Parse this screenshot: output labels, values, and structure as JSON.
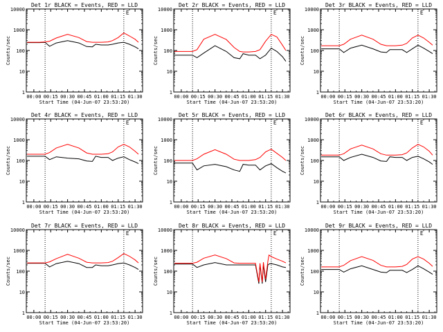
{
  "common": {
    "tick_labels": [
      "00:00",
      "00:15",
      "00:30",
      "00:45",
      "01:00",
      "01:15",
      "01:30"
    ],
    "xlabel": "Start Time (04-Jun-07 23:53:20)",
    "ylabel": "Counts/sec",
    "y_tick_labels": [
      "1",
      "10",
      "100",
      "1000",
      "10000"
    ],
    "ylim": [
      1,
      10000
    ],
    "y_scale": "log",
    "xlim_minutes": [
      -6.7,
      96.7
    ],
    "colors": {
      "events": "#000000",
      "lld": "#ff0000",
      "axes": "#000000",
      "markers": "#000000"
    },
    "marker_label": "E"
  },
  "chart_data": [
    {
      "type": "line",
      "title": "Det 1r BLACK = Events, RED = LLD",
      "marker_lines_min": [
        10.0,
        80.0
      ],
      "series": [
        {
          "name": "BLACK = Events",
          "x": [
            -6,
            0,
            5,
            10,
            14,
            20,
            30,
            40,
            47,
            52,
            55,
            60,
            66,
            70,
            75,
            80,
            85,
            90,
            93
          ],
          "y": [
            240,
            240,
            240,
            245,
            160,
            230,
            300,
            230,
            155,
            150,
            200,
            185,
            185,
            200,
            230,
            250,
            200,
            150,
            120
          ]
        },
        {
          "name": "RED = LLD",
          "x": [
            -6,
            0,
            5,
            10,
            14,
            20,
            30,
            40,
            47,
            52,
            55,
            60,
            66,
            70,
            75,
            80,
            85,
            90,
            93
          ],
          "y": [
            250,
            250,
            250,
            260,
            280,
            400,
            600,
            420,
            270,
            250,
            250,
            250,
            260,
            300,
            420,
            700,
            500,
            350,
            250
          ]
        }
      ]
    },
    {
      "type": "line",
      "title": "Det 2r BLACK = Events, RED = LLD",
      "marker_lines_min": [
        10.0,
        80.0
      ],
      "series": [
        {
          "name": "BLACK = Events",
          "x": [
            -6,
            0,
            10,
            14,
            20,
            30,
            40,
            47,
            52,
            55,
            60,
            66,
            70,
            75,
            80,
            85,
            90,
            93
          ],
          "y": [
            60,
            60,
            60,
            45,
            75,
            170,
            90,
            45,
            40,
            70,
            60,
            60,
            40,
            60,
            130,
            90,
            50,
            30
          ]
        },
        {
          "name": "RED = LLD",
          "x": [
            -6,
            0,
            10,
            14,
            20,
            30,
            40,
            47,
            52,
            55,
            60,
            66,
            70,
            75,
            80,
            85,
            90,
            93
          ],
          "y": [
            90,
            90,
            90,
            110,
            350,
            600,
            340,
            140,
            90,
            85,
            85,
            90,
            110,
            280,
            600,
            450,
            180,
            100
          ]
        }
      ]
    },
    {
      "type": "line",
      "title": "Det 3r BLACK = Events, RED = LLD",
      "marker_lines_min": [
        10.0,
        80.0
      ],
      "series": [
        {
          "name": "BLACK = Events",
          "x": [
            -6,
            0,
            10,
            14,
            20,
            30,
            40,
            47,
            52,
            55,
            60,
            66,
            70,
            75,
            80,
            85,
            90,
            93
          ],
          "y": [
            120,
            120,
            120,
            80,
            130,
            180,
            120,
            85,
            80,
            110,
            110,
            110,
            80,
            120,
            180,
            130,
            90,
            70
          ]
        },
        {
          "name": "RED = LLD",
          "x": [
            -6,
            0,
            10,
            14,
            20,
            30,
            40,
            47,
            52,
            55,
            60,
            66,
            70,
            75,
            80,
            85,
            90,
            93
          ],
          "y": [
            170,
            170,
            170,
            200,
            350,
            550,
            350,
            200,
            170,
            170,
            170,
            180,
            220,
            400,
            550,
            400,
            250,
            180
          ]
        }
      ]
    },
    {
      "type": "line",
      "title": "Det 4r BLACK = Events, RED = LLD",
      "marker_lines_min": [
        10.0,
        80.0
      ],
      "series": [
        {
          "name": "BLACK = Events",
          "x": [
            -6,
            0,
            10,
            14,
            20,
            30,
            40,
            47,
            52,
            55,
            60,
            66,
            70,
            75,
            80,
            85,
            90,
            93
          ],
          "y": [
            160,
            160,
            160,
            110,
            150,
            130,
            120,
            95,
            90,
            160,
            140,
            140,
            100,
            130,
            150,
            110,
            85,
            70
          ]
        },
        {
          "name": "RED = LLD",
          "x": [
            -6,
            0,
            10,
            14,
            20,
            30,
            40,
            47,
            52,
            55,
            60,
            66,
            70,
            75,
            80,
            85,
            90,
            93
          ],
          "y": [
            200,
            200,
            200,
            240,
            400,
            600,
            400,
            230,
            200,
            200,
            200,
            210,
            260,
            450,
            600,
            450,
            280,
            200
          ]
        }
      ]
    },
    {
      "type": "line",
      "title": "Det 5r BLACK = Events, RED = LLD",
      "marker_lines_min": [
        10.0,
        80.0
      ],
      "series": [
        {
          "name": "BLACK = Events",
          "x": [
            -6,
            0,
            10,
            14,
            20,
            30,
            40,
            47,
            52,
            55,
            60,
            66,
            70,
            75,
            80,
            85,
            90,
            93
          ],
          "y": [
            75,
            75,
            75,
            35,
            55,
            65,
            50,
            35,
            30,
            65,
            60,
            60,
            35,
            55,
            70,
            45,
            30,
            25
          ]
        },
        {
          "name": "RED = LLD",
          "x": [
            -6,
            0,
            10,
            14,
            20,
            30,
            40,
            47,
            52,
            55,
            60,
            66,
            70,
            75,
            80,
            85,
            90,
            93
          ],
          "y": [
            100,
            100,
            100,
            120,
            200,
            330,
            200,
            115,
            100,
            100,
            100,
            110,
            140,
            260,
            350,
            220,
            140,
            100
          ]
        }
      ]
    },
    {
      "type": "line",
      "title": "Det 6r BLACK = Events, RED = LLD",
      "marker_lines_min": [
        10.0,
        80.0
      ],
      "series": [
        {
          "name": "BLACK = Events",
          "x": [
            -6,
            0,
            10,
            14,
            20,
            30,
            40,
            47,
            52,
            55,
            60,
            66,
            70,
            75,
            80,
            85,
            90,
            93
          ],
          "y": [
            150,
            150,
            150,
            100,
            140,
            200,
            140,
            95,
            90,
            150,
            140,
            140,
            100,
            140,
            160,
            120,
            85,
            65
          ]
        },
        {
          "name": "RED = LLD",
          "x": [
            -6,
            0,
            10,
            14,
            20,
            30,
            40,
            47,
            52,
            55,
            60,
            66,
            70,
            75,
            80,
            85,
            90,
            93
          ],
          "y": [
            180,
            180,
            180,
            210,
            360,
            550,
            360,
            210,
            180,
            180,
            180,
            190,
            230,
            400,
            600,
            450,
            280,
            180
          ]
        }
      ]
    },
    {
      "type": "line",
      "title": "Det 7r BLACK = Events, RED = LLD",
      "marker_lines_min": [
        10.0,
        80.0
      ],
      "series": [
        {
          "name": "BLACK = Events",
          "x": [
            -6,
            0,
            10,
            14,
            20,
            30,
            40,
            47,
            52,
            55,
            60,
            66,
            70,
            75,
            80,
            85,
            90,
            93
          ],
          "y": [
            240,
            240,
            240,
            160,
            230,
            300,
            230,
            150,
            150,
            200,
            180,
            180,
            200,
            230,
            250,
            200,
            150,
            120
          ]
        },
        {
          "name": "RED = LLD",
          "x": [
            -6,
            0,
            10,
            14,
            20,
            30,
            40,
            47,
            52,
            55,
            60,
            66,
            70,
            75,
            80,
            85,
            90,
            93
          ],
          "y": [
            250,
            250,
            250,
            280,
            400,
            650,
            420,
            270,
            250,
            250,
            250,
            260,
            300,
            450,
            700,
            520,
            350,
            250
          ]
        }
      ]
    },
    {
      "type": "line",
      "title": "Det 8r BLACK = Events, RED = LLD",
      "marker_lines_min": [
        10.0,
        80.0
      ],
      "series": [
        {
          "name": "BLACK = Events",
          "x": [
            -6,
            0,
            10,
            14,
            20,
            30,
            40,
            47,
            52,
            55,
            60,
            66,
            69,
            70,
            72,
            73,
            75,
            77,
            78,
            80,
            85,
            90,
            93
          ],
          "y": [
            220,
            220,
            220,
            150,
            200,
            260,
            200,
            200,
            200,
            200,
            200,
            200,
            25,
            200,
            25,
            200,
            30,
            200,
            220,
            230,
            200,
            160,
            150
          ]
        },
        {
          "name": "RED = LLD",
          "x": [
            -6,
            0,
            10,
            14,
            20,
            30,
            40,
            47,
            52,
            55,
            60,
            66,
            69,
            70,
            72,
            73,
            75,
            77,
            78,
            80,
            85,
            90,
            93
          ],
          "y": [
            240,
            240,
            240,
            270,
            420,
            600,
            400,
            250,
            240,
            240,
            240,
            240,
            30,
            240,
            30,
            270,
            40,
            300,
            600,
            500,
            380,
            300,
            250
          ]
        }
      ]
    },
    {
      "type": "line",
      "title": "Det 9r BLACK = Events, RED = LLD",
      "marker_lines_min": [
        10.0,
        80.0
      ],
      "series": [
        {
          "name": "BLACK = Events",
          "x": [
            -6,
            0,
            10,
            14,
            20,
            30,
            40,
            47,
            52,
            55,
            60,
            66,
            70,
            75,
            80,
            85,
            90,
            93
          ],
          "y": [
            120,
            120,
            120,
            90,
            130,
            180,
            120,
            90,
            85,
            110,
            110,
            110,
            85,
            120,
            180,
            130,
            90,
            70
          ]
        },
        {
          "name": "RED = LLD",
          "x": [
            -6,
            0,
            10,
            14,
            20,
            30,
            40,
            47,
            52,
            55,
            60,
            66,
            70,
            75,
            80,
            85,
            90,
            93
          ],
          "y": [
            160,
            160,
            160,
            190,
            320,
            500,
            330,
            190,
            160,
            160,
            160,
            170,
            210,
            380,
            500,
            380,
            240,
            170
          ]
        }
      ]
    }
  ]
}
